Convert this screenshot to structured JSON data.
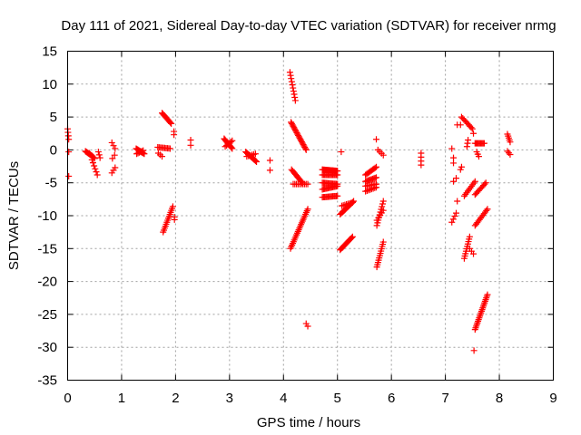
{
  "chart_data": {
    "type": "scatter",
    "title": "Day 111 of 2021, Sidereal Day-to-day VTEC variation (SDTVAR) for receiver nrmg",
    "xlabel": "GPS time / hours",
    "ylabel": "SDTVAR / TECUs",
    "xlim": [
      0,
      9
    ],
    "ylim": [
      -35,
      15
    ],
    "xticks": [
      0,
      1,
      2,
      3,
      4,
      5,
      6,
      7,
      8,
      9
    ],
    "yticks": [
      15,
      10,
      5,
      0,
      -5,
      -10,
      -15,
      -20,
      -25,
      -30,
      -35
    ],
    "grid": true,
    "marker": "plus",
    "color": "#ff0000",
    "segments": [
      {
        "x0": 0.0,
        "y0": 3.2,
        "x1": 0.02,
        "y1": 1.6,
        "n": 4
      },
      {
        "x0": 0.02,
        "y0": -0.3,
        "x1": 0.02,
        "y1": -4.0,
        "n": 2
      },
      {
        "x0": 0.33,
        "y0": -0.2,
        "x1": 0.43,
        "y1": -0.8,
        "n": 8
      },
      {
        "x0": 0.4,
        "y0": -0.5,
        "x1": 0.5,
        "y1": -1.3,
        "n": 6
      },
      {
        "x0": 0.45,
        "y0": -1.5,
        "x1": 0.55,
        "y1": -3.8,
        "n": 6
      },
      {
        "x0": 0.57,
        "y0": -0.3,
        "x1": 0.6,
        "y1": -1.2,
        "n": 3
      },
      {
        "x0": 0.82,
        "y0": 1.1,
        "x1": 0.88,
        "y1": 0.2,
        "n": 3
      },
      {
        "x0": 0.82,
        "y0": -3.5,
        "x1": 0.88,
        "y1": -2.7,
        "n": 3
      },
      {
        "x0": 0.83,
        "y0": -1.3,
        "x1": 0.87,
        "y1": -0.8,
        "n": 2
      },
      {
        "x0": 1.27,
        "y0": 0.2,
        "x1": 1.42,
        "y1": -0.6,
        "n": 10
      },
      {
        "x0": 1.28,
        "y0": -0.6,
        "x1": 1.4,
        "y1": -0.1,
        "n": 6
      },
      {
        "x0": 1.67,
        "y0": 0.4,
        "x1": 1.9,
        "y1": 0.2,
        "n": 10
      },
      {
        "x0": 1.68,
        "y0": -0.5,
        "x1": 1.75,
        "y1": -1.0,
        "n": 3
      },
      {
        "x0": 1.75,
        "y0": 5.6,
        "x1": 1.92,
        "y1": 4.0,
        "n": 12
      },
      {
        "x0": 1.97,
        "y0": 2.8,
        "x1": 1.97,
        "y1": 2.3,
        "n": 2
      },
      {
        "x0": 1.77,
        "y0": -12.5,
        "x1": 1.95,
        "y1": -8.6,
        "n": 14
      },
      {
        "x0": 1.98,
        "y0": -10.2,
        "x1": 1.98,
        "y1": -10.6,
        "n": 2
      },
      {
        "x0": 2.28,
        "y0": 1.5,
        "x1": 2.28,
        "y1": 0.7,
        "n": 2
      },
      {
        "x0": 2.9,
        "y0": 1.7,
        "x1": 3.05,
        "y1": 0.2,
        "n": 12
      },
      {
        "x0": 2.92,
        "y0": 0.5,
        "x1": 3.05,
        "y1": 1.4,
        "n": 6
      },
      {
        "x0": 3.3,
        "y0": -0.3,
        "x1": 3.5,
        "y1": -1.8,
        "n": 14
      },
      {
        "x0": 3.32,
        "y0": -1.0,
        "x1": 3.48,
        "y1": -0.6,
        "n": 6
      },
      {
        "x0": 3.75,
        "y0": -1.6,
        "x1": 3.75,
        "y1": -3.1,
        "n": 2
      },
      {
        "x0": 4.12,
        "y0": 11.8,
        "x1": 4.22,
        "y1": 7.5,
        "n": 10
      },
      {
        "x0": 4.14,
        "y0": 4.2,
        "x1": 4.42,
        "y1": 0.0,
        "n": 22
      },
      {
        "x0": 4.15,
        "y0": -3.0,
        "x1": 4.35,
        "y1": -5.0,
        "n": 12
      },
      {
        "x0": 4.18,
        "y0": -5.2,
        "x1": 4.45,
        "y1": -5.2,
        "n": 10
      },
      {
        "x0": 4.13,
        "y0": -15.0,
        "x1": 4.45,
        "y1": -9.0,
        "n": 24
      },
      {
        "x0": 4.42,
        "y0": -26.4,
        "x1": 4.45,
        "y1": -26.8,
        "n": 2
      },
      {
        "x0": 4.72,
        "y0": -3.0,
        "x1": 5.0,
        "y1": -3.2,
        "n": 20
      },
      {
        "x0": 4.72,
        "y0": -3.8,
        "x1": 5.0,
        "y1": -3.8,
        "n": 14
      },
      {
        "x0": 4.72,
        "y0": -5.0,
        "x1": 5.0,
        "y1": -5.2,
        "n": 14
      },
      {
        "x0": 4.72,
        "y0": -6.0,
        "x1": 5.0,
        "y1": -5.5,
        "n": 14
      },
      {
        "x0": 4.72,
        "y0": -7.2,
        "x1": 5.0,
        "y1": -7.0,
        "n": 14
      },
      {
        "x0": 5.07,
        "y0": -0.3,
        "x1": 5.07,
        "y1": -0.3,
        "n": 1
      },
      {
        "x0": 5.05,
        "y0": -9.8,
        "x1": 5.3,
        "y1": -7.8,
        "n": 14
      },
      {
        "x0": 5.08,
        "y0": -8.5,
        "x1": 5.28,
        "y1": -8.0,
        "n": 8
      },
      {
        "x0": 5.05,
        "y0": -15.2,
        "x1": 5.28,
        "y1": -13.2,
        "n": 14
      },
      {
        "x0": 5.52,
        "y0": -3.8,
        "x1": 5.72,
        "y1": -2.6,
        "n": 10
      },
      {
        "x0": 5.52,
        "y0": -4.8,
        "x1": 5.72,
        "y1": -4.2,
        "n": 10
      },
      {
        "x0": 5.52,
        "y0": -5.5,
        "x1": 5.72,
        "y1": -5.2,
        "n": 8
      },
      {
        "x0": 5.52,
        "y0": -6.3,
        "x1": 5.72,
        "y1": -5.7,
        "n": 8
      },
      {
        "x0": 5.72,
        "y0": 1.6,
        "x1": 5.72,
        "y1": 1.6,
        "n": 1
      },
      {
        "x0": 5.75,
        "y0": 0.0,
        "x1": 5.85,
        "y1": -0.8,
        "n": 4
      },
      {
        "x0": 5.73,
        "y0": -11.5,
        "x1": 5.85,
        "y1": -7.8,
        "n": 10
      },
      {
        "x0": 5.73,
        "y0": -10.7,
        "x1": 5.85,
        "y1": -9.2,
        "n": 5
      },
      {
        "x0": 5.73,
        "y0": -17.8,
        "x1": 5.85,
        "y1": -14.0,
        "n": 12
      },
      {
        "x0": 6.55,
        "y0": -0.5,
        "x1": 6.55,
        "y1": -2.3,
        "n": 4
      },
      {
        "x0": 7.12,
        "y0": 0.2,
        "x1": 7.12,
        "y1": 0.2,
        "n": 1
      },
      {
        "x0": 7.15,
        "y0": -1.2,
        "x1": 7.15,
        "y1": -2.0,
        "n": 2
      },
      {
        "x0": 7.15,
        "y0": -4.8,
        "x1": 7.2,
        "y1": -4.3,
        "n": 2
      },
      {
        "x0": 7.22,
        "y0": -7.8,
        "x1": 7.22,
        "y1": -7.8,
        "n": 1
      },
      {
        "x0": 7.12,
        "y0": -11.0,
        "x1": 7.2,
        "y1": -9.6,
        "n": 4
      },
      {
        "x0": 7.22,
        "y0": 3.8,
        "x1": 7.28,
        "y1": 3.8,
        "n": 2
      },
      {
        "x0": 7.3,
        "y0": 5.0,
        "x1": 7.5,
        "y1": 3.2,
        "n": 10
      },
      {
        "x0": 7.28,
        "y0": -3.0,
        "x1": 7.3,
        "y1": -2.6,
        "n": 2
      },
      {
        "x0": 7.35,
        "y0": -7.0,
        "x1": 7.55,
        "y1": -4.8,
        "n": 10
      },
      {
        "x0": 7.4,
        "y0": 0.5,
        "x1": 7.42,
        "y1": 1.5,
        "n": 3
      },
      {
        "x0": 7.35,
        "y0": -16.5,
        "x1": 7.45,
        "y1": -13.2,
        "n": 10
      },
      {
        "x0": 7.45,
        "y0": -15.0,
        "x1": 7.52,
        "y1": -15.8,
        "n": 3
      },
      {
        "x0": 7.52,
        "y0": 2.5,
        "x1": 7.52,
        "y1": 2.5,
        "n": 1
      },
      {
        "x0": 7.55,
        "y0": 1.0,
        "x1": 7.72,
        "y1": 1.0,
        "n": 10
      },
      {
        "x0": 7.58,
        "y0": -0.3,
        "x1": 7.62,
        "y1": -1.0,
        "n": 3
      },
      {
        "x0": 7.55,
        "y0": -6.8,
        "x1": 7.75,
        "y1": -5.0,
        "n": 10
      },
      {
        "x0": 7.55,
        "y0": -11.5,
        "x1": 7.78,
        "y1": -9.0,
        "n": 12
      },
      {
        "x0": 7.55,
        "y0": -27.3,
        "x1": 7.78,
        "y1": -22.0,
        "n": 22
      },
      {
        "x0": 7.53,
        "y0": -30.5,
        "x1": 7.53,
        "y1": -30.5,
        "n": 1
      },
      {
        "x0": 8.15,
        "y0": 2.4,
        "x1": 8.2,
        "y1": 1.2,
        "n": 5
      },
      {
        "x0": 8.15,
        "y0": -0.2,
        "x1": 8.2,
        "y1": -0.7,
        "n": 3
      }
    ]
  }
}
